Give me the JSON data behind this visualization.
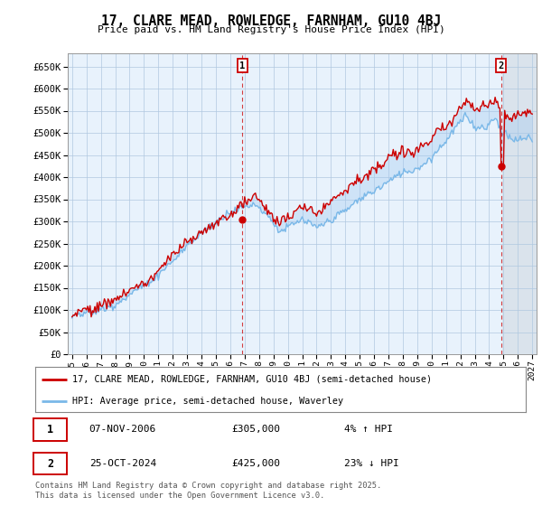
{
  "title": "17, CLARE MEAD, ROWLEDGE, FARNHAM, GU10 4BJ",
  "subtitle": "Price paid vs. HM Land Registry's House Price Index (HPI)",
  "ylabel_ticks": [
    "£0",
    "£50K",
    "£100K",
    "£150K",
    "£200K",
    "£250K",
    "£300K",
    "£350K",
    "£400K",
    "£450K",
    "£500K",
    "£550K",
    "£600K",
    "£650K"
  ],
  "ytick_values": [
    0,
    50000,
    100000,
    150000,
    200000,
    250000,
    300000,
    350000,
    400000,
    450000,
    500000,
    550000,
    600000,
    650000
  ],
  "xlim_left": 1994.7,
  "xlim_right": 2027.3,
  "ylim": [
    0,
    680000
  ],
  "hpi_color": "#7ab8e8",
  "price_color": "#cc0000",
  "bg_color": "#ddeeff",
  "plot_bg": "#e8f2fc",
  "shade_color": "#c8dff5",
  "future_bg": "#d8d8d8",
  "grid_color": "#b0c8e0",
  "legend_label_price": "17, CLARE MEAD, ROWLEDGE, FARNHAM, GU10 4BJ (semi-detached house)",
  "legend_label_hpi": "HPI: Average price, semi-detached house, Waverley",
  "marker1_x": 2006.85,
  "marker1_y": 305000,
  "marker2_x": 2024.82,
  "marker2_y": 425000,
  "note1_date": "07-NOV-2006",
  "note1_price": "£305,000",
  "note1_hpi": "4% ↑ HPI",
  "note2_date": "25-OCT-2024",
  "note2_price": "£425,000",
  "note2_hpi": "23% ↓ HPI",
  "footer": "Contains HM Land Registry data © Crown copyright and database right 2025.\nThis data is licensed under the Open Government Licence v3.0.",
  "future_cutoff": 2024.9
}
